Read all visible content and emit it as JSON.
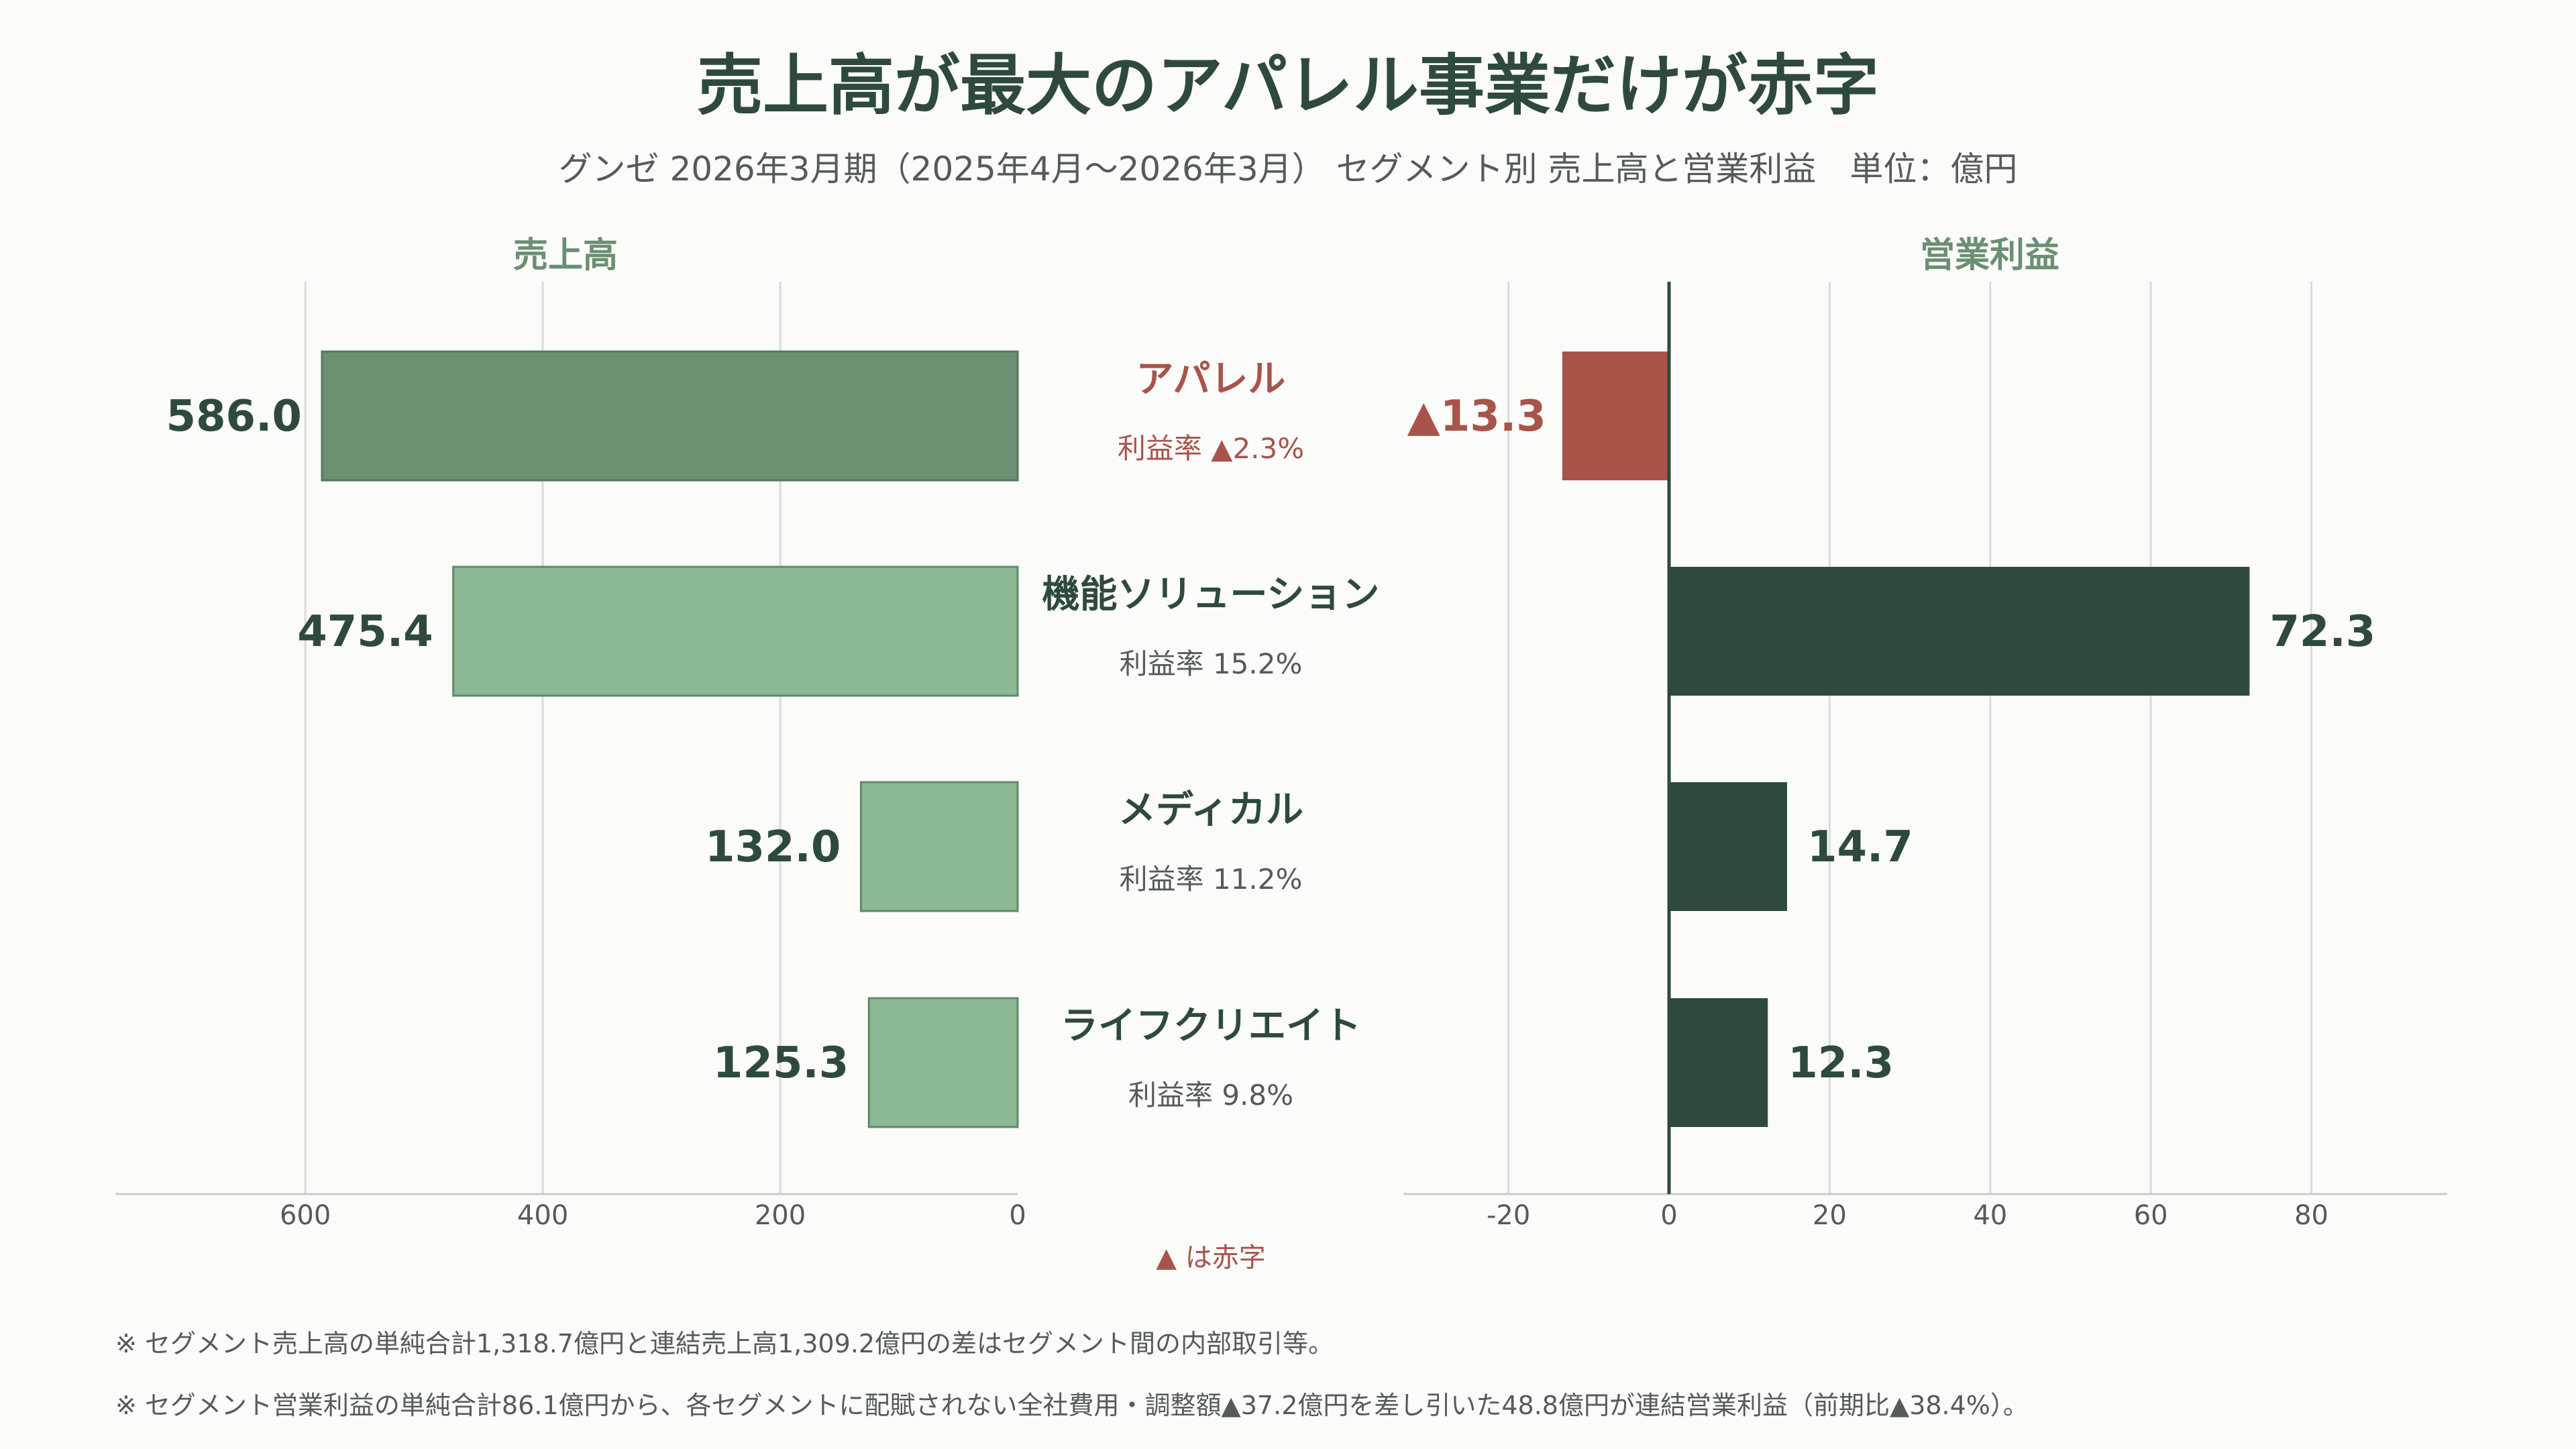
{
  "title": "売上高が最大のアパレル事業だけが赤字",
  "subtitle": "グンゼ 2026年3月期（2025年4月〜2026年3月） セグメント別 売上高と営業利益　単位：億円",
  "colors": {
    "dark_green": "#2e4a3c",
    "mid_green": "#6b8f71",
    "light_green": "#8db896",
    "red": "#a8544a",
    "grid": "#d9dcda",
    "axis_text": "#555b58"
  },
  "chart_data": [
    {
      "type": "bar",
      "orientation": "horizontal",
      "title": "売上高",
      "categories": [
        "アパレル",
        "機能ソリューション",
        "メディカル",
        "ライフクリエイト"
      ],
      "values": [
        586.0,
        475.4,
        132.0,
        125.3
      ],
      "value_labels": [
        "586.0",
        "475.4",
        "132.0",
        "125.3"
      ],
      "xlim": [
        0,
        760
      ],
      "x_direction": "reversed",
      "ticks": [
        600,
        400,
        200,
        0
      ],
      "grid": true
    },
    {
      "type": "bar",
      "orientation": "horizontal",
      "title": "営業利益",
      "categories": [
        "アパレル",
        "機能ソリューション",
        "メディカル",
        "ライフクリエイト"
      ],
      "values": [
        -13.3,
        72.3,
        14.7,
        12.3
      ],
      "value_labels": [
        "▲13.3",
        "72.3",
        "14.7",
        "12.3"
      ],
      "xlim": [
        -33,
        97
      ],
      "ticks": [
        -20,
        0,
        20,
        40,
        60,
        80
      ],
      "grid": true
    }
  ],
  "segments": [
    {
      "name": "アパレル",
      "margin": "利益率 ▲2.3%",
      "loss": true
    },
    {
      "name": "機能ソリューション",
      "margin": "利益率 15.2%",
      "loss": false
    },
    {
      "name": "メディカル",
      "margin": "利益率 11.2%",
      "loss": false
    },
    {
      "name": "ライフクリエイト",
      "margin": "利益率 9.8%",
      "loss": false
    }
  ],
  "legend_note": "▲ は赤字",
  "notes": [
    "※ セグメント売上高の単純合計1,318.7億円と連結売上高1,309.2億円の差はセグメント間の内部取引等。",
    "※ セグメント営業利益の単純合計86.1億円から、各セグメントに配賦されない全社費用・調整額▲37.2億円を差し引いた48.8億円が連結営業利益（前期比▲38.4%）。"
  ]
}
